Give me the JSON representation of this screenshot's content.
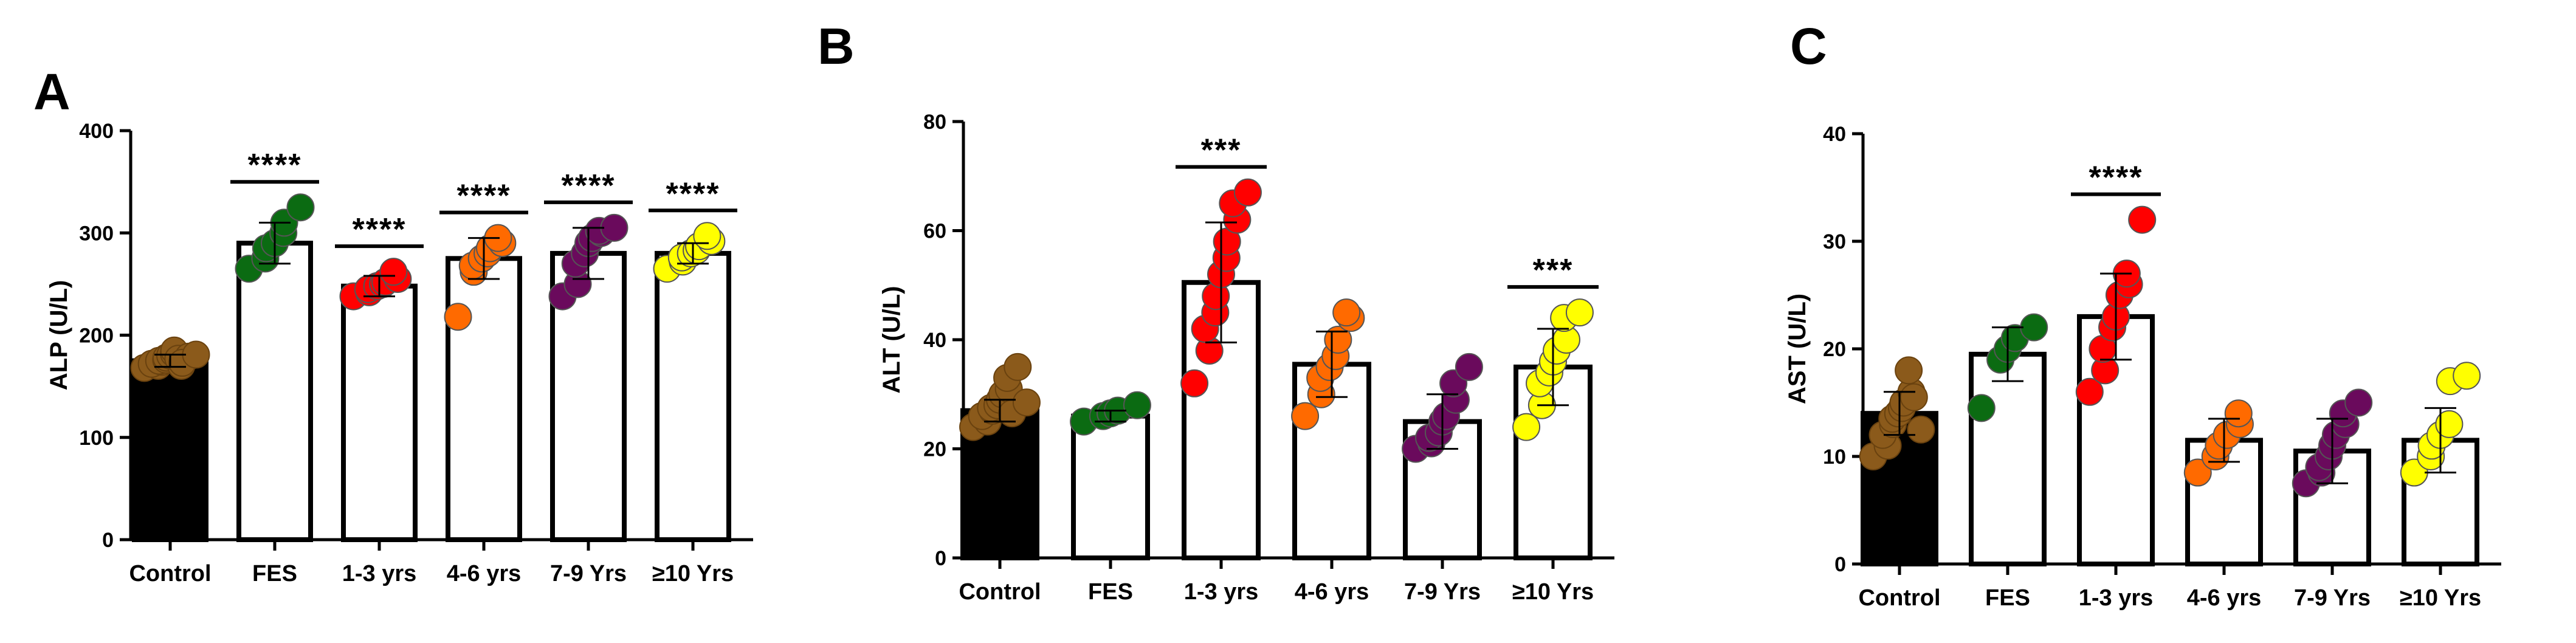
{
  "chart_data": [
    {
      "type": "bar",
      "panel": "A",
      "ylabel": "ALP (U/L)",
      "ylim": [
        0,
        400
      ],
      "yticks": [
        0,
        100,
        200,
        300,
        400
      ],
      "categories": [
        "Control",
        "FES",
        "1-3 yrs",
        "4-6 yrs",
        "7-9 Yrs",
        "≥10 Yrs"
      ],
      "values": [
        175,
        290,
        248,
        275,
        280,
        280
      ],
      "errors": [
        6,
        20,
        10,
        20,
        25,
        10
      ],
      "colors": [
        "#8B5A1B",
        "#0B6B12",
        "#FF0000",
        "#FF6A00",
        "#6A0A5C",
        "#FFFF00"
      ],
      "bar_fill": [
        "#000000",
        "#ffffff",
        "#ffffff",
        "#ffffff",
        "#ffffff",
        "#ffffff"
      ],
      "points": [
        [
          168,
          170,
          172,
          174,
          175,
          176,
          178,
          180,
          182,
          185,
          170,
          177,
          179,
          173,
          181
        ],
        [
          265,
          275,
          285,
          290,
          300,
          310,
          325
        ],
        [
          238,
          242,
          245,
          248,
          250,
          252,
          255,
          262
        ],
        [
          218,
          262,
          268,
          275,
          280,
          285,
          290,
          295
        ],
        [
          238,
          250,
          270,
          280,
          290,
          295,
          300,
          302,
          305
        ],
        [
          265,
          272,
          276,
          280,
          283,
          287,
          292,
          297
        ]
      ],
      "significance": [
        "",
        "****",
        "****",
        "****",
        "****",
        "****"
      ]
    },
    {
      "type": "bar",
      "panel": "B",
      "ylabel": "ALT (U/L)",
      "ylim": [
        0,
        80
      ],
      "yticks": [
        0,
        20,
        40,
        60,
        80
      ],
      "categories": [
        "Control",
        "FES",
        "1-3 yrs",
        "4-6 yrs",
        "7-9 Yrs",
        "≥10 Yrs"
      ],
      "values": [
        27,
        26,
        50.5,
        35.5,
        25,
        35
      ],
      "errors": [
        2,
        1,
        11,
        6,
        5,
        7
      ],
      "colors": [
        "#8B5A1B",
        "#0B6B12",
        "#FF0000",
        "#FF6A00",
        "#6A0A5C",
        "#FFFF00"
      ],
      "bar_fill": [
        "#000000",
        "#ffffff",
        "#ffffff",
        "#ffffff",
        "#ffffff",
        "#ffffff"
      ],
      "points": [
        [
          24,
          25,
          26,
          27,
          27.5,
          28,
          29,
          30,
          31,
          33,
          35,
          26.5,
          28.5
        ],
        [
          25,
          26,
          26.5,
          27,
          28
        ],
        [
          32,
          38,
          42,
          45,
          48,
          52,
          55,
          58,
          62,
          65,
          67
        ],
        [
          26,
          30,
          33,
          35,
          37,
          40,
          44,
          45
        ],
        [
          20,
          21,
          22,
          23,
          25,
          26,
          29,
          32,
          35
        ],
        [
          24,
          28,
          32,
          34,
          36,
          38,
          40,
          44,
          45
        ]
      ],
      "significance": [
        "",
        "",
        "***",
        "",
        "",
        "***"
      ]
    },
    {
      "type": "bar",
      "panel": "C",
      "ylabel": "AST (U/L)",
      "ylim": [
        0,
        40
      ],
      "yticks": [
        0,
        10,
        20,
        30,
        40
      ],
      "categories": [
        "Control",
        "FES",
        "1-3 yrs",
        "4-6 yrs",
        "7-9 Yrs",
        "≥10 Yrs"
      ],
      "values": [
        14,
        19.5,
        23,
        11.5,
        10.5,
        11.5
      ],
      "errors": [
        2,
        2.5,
        4,
        2,
        3,
        3
      ],
      "colors": [
        "#8B5A1B",
        "#0B6B12",
        "#FF0000",
        "#FF6A00",
        "#6A0A5C",
        "#FFFF00"
      ],
      "bar_fill": [
        "#000000",
        "#ffffff",
        "#ffffff",
        "#ffffff",
        "#ffffff",
        "#ffffff"
      ],
      "points": [
        [
          10,
          11,
          12,
          13,
          13.5,
          14,
          14.5,
          15,
          16,
          18,
          12.5,
          15.5
        ],
        [
          14.5,
          19,
          20,
          21,
          22
        ],
        [
          16,
          18,
          20,
          22,
          23,
          25,
          26,
          27,
          32
        ],
        [
          8.5,
          10,
          11,
          12,
          13,
          14
        ],
        [
          7.5,
          8.5,
          9,
          10,
          11,
          12,
          13,
          14,
          15
        ],
        [
          8.5,
          10,
          11,
          12,
          13,
          17,
          17.5
        ]
      ],
      "significance": [
        "",
        "",
        "****",
        "",
        "",
        ""
      ]
    }
  ]
}
